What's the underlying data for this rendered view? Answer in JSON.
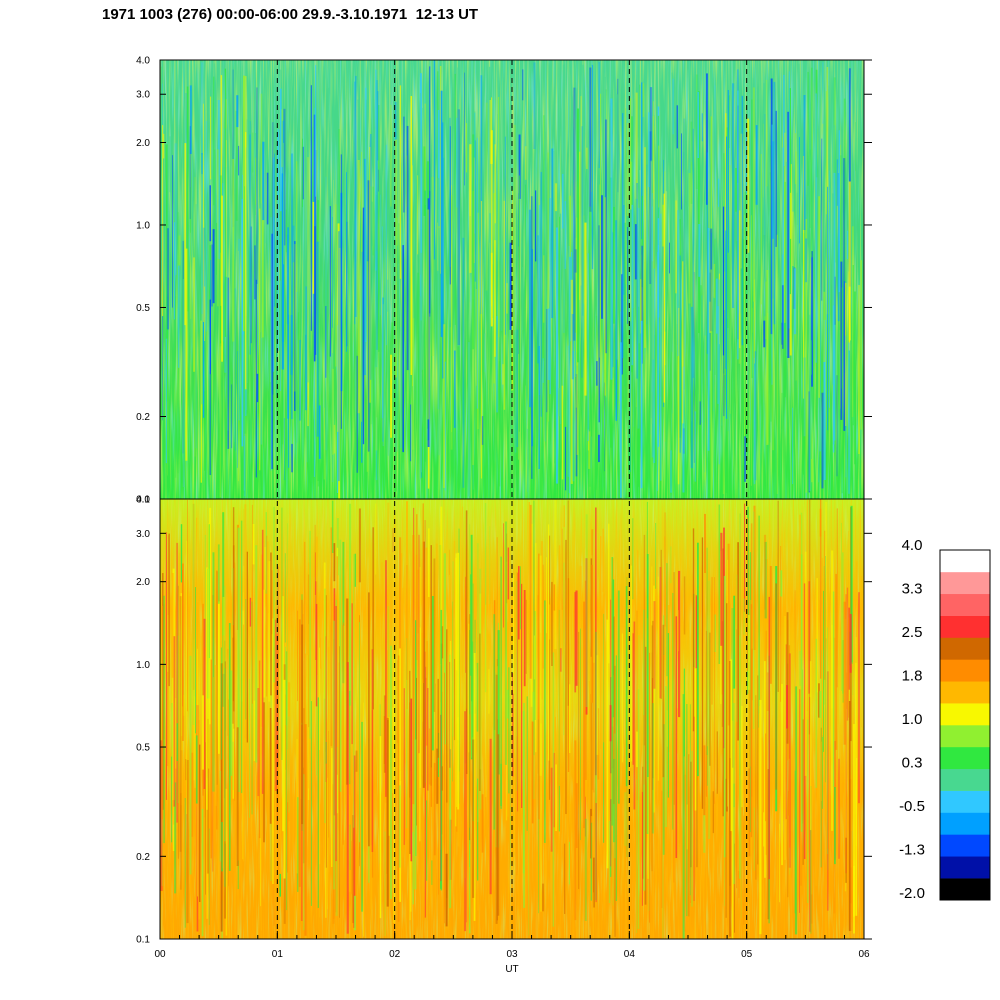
{
  "title": "1971 1003 (276) 00:00-06:00 29.9.-3.10.1971  12-13 UT",
  "chart_data": {
    "type": "heatmap",
    "title": "1971 1003 (276) 00:00-06:00 29.9.-3.10.1971  12-13 UT",
    "xlabel": "UT",
    "x_tick_labels": [
      "00",
      "01",
      "02",
      "03",
      "04",
      "05",
      "06"
    ],
    "xlim": [
      0,
      6
    ],
    "y_scale": "log",
    "panels": [
      {
        "name": "upper",
        "ylim": [
          0.1,
          4.0
        ],
        "y_tick_labels": [
          "0.1",
          "0.2",
          "0.5",
          "1.0",
          "2.0",
          "3.0",
          "4.0"
        ],
        "y_tick_values": [
          0.1,
          0.2,
          0.5,
          1.0,
          2.0,
          3.0,
          4.0
        ],
        "dominant_level_range": [
          -0.5,
          1.0
        ]
      },
      {
        "name": "lower",
        "ylim": [
          0.1,
          4.0
        ],
        "y_tick_labels": [
          "0.1",
          "0.2",
          "0.5",
          "1.0",
          "2.0",
          "3.0",
          "4.0"
        ],
        "y_tick_values": [
          0.1,
          0.2,
          0.5,
          1.0,
          2.0,
          3.0,
          4.0
        ],
        "dominant_level_range": [
          0.3,
          2.5
        ]
      }
    ],
    "colorbar": {
      "tick_labels": [
        "4.0",
        "3.3",
        "2.5",
        "1.8",
        "1.0",
        "0.3",
        "-0.5",
        "-1.3",
        "-2.0"
      ],
      "range": [
        -2.0,
        4.0
      ],
      "colors": [
        "#000000",
        "#0010a8",
        "#0048ff",
        "#00a0ff",
        "#30c8ff",
        "#48d890",
        "#30e840",
        "#90f030",
        "#f8f800",
        "#ffb800",
        "#ff8c00",
        "#d06800",
        "#ff3030",
        "#ff6464",
        "#ff9898",
        "#ffffff"
      ]
    },
    "grid": "dashed vertical lines at each hour",
    "legend": "colorbar right"
  }
}
